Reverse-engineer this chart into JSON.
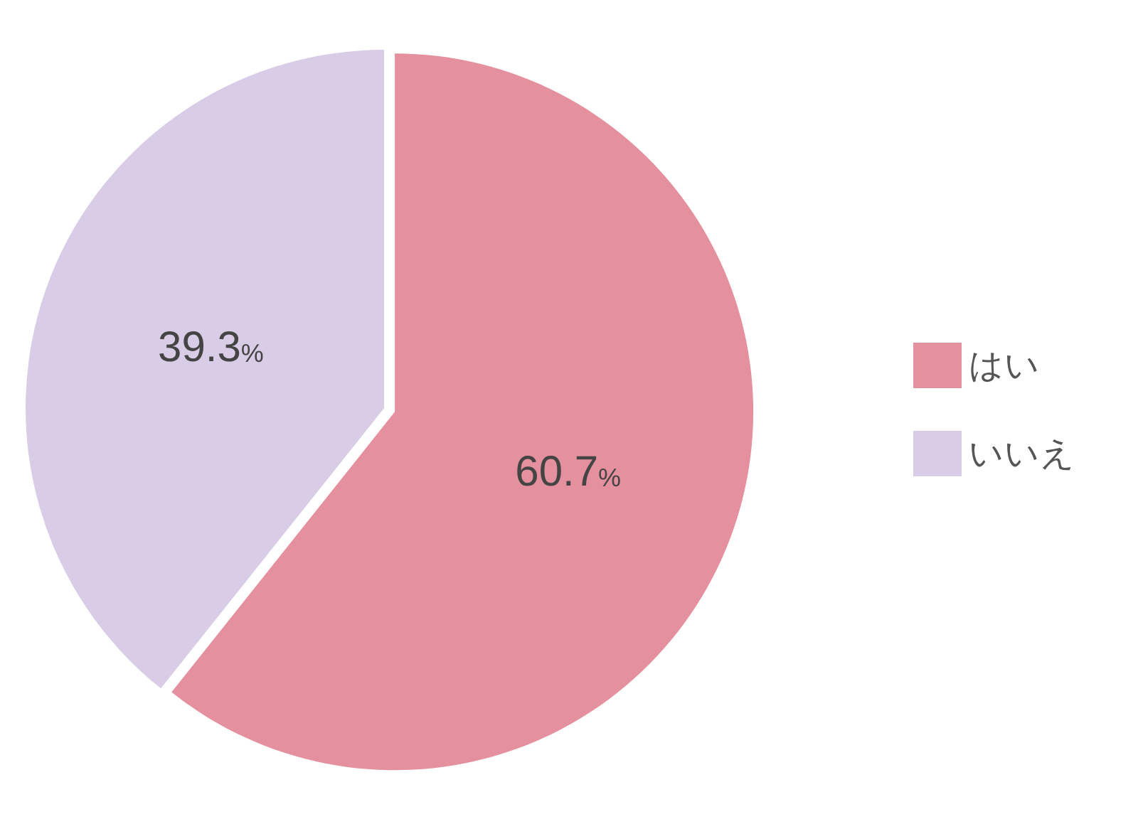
{
  "chart_data": {
    "type": "pie",
    "categories": [
      "はい",
      "いいえ"
    ],
    "values": [
      60.7,
      39.3
    ],
    "colors": [
      "#e5909e",
      "#d9cce6"
    ],
    "value_labels": [
      "60.7%",
      "39.3%"
    ],
    "legend": "right"
  }
}
